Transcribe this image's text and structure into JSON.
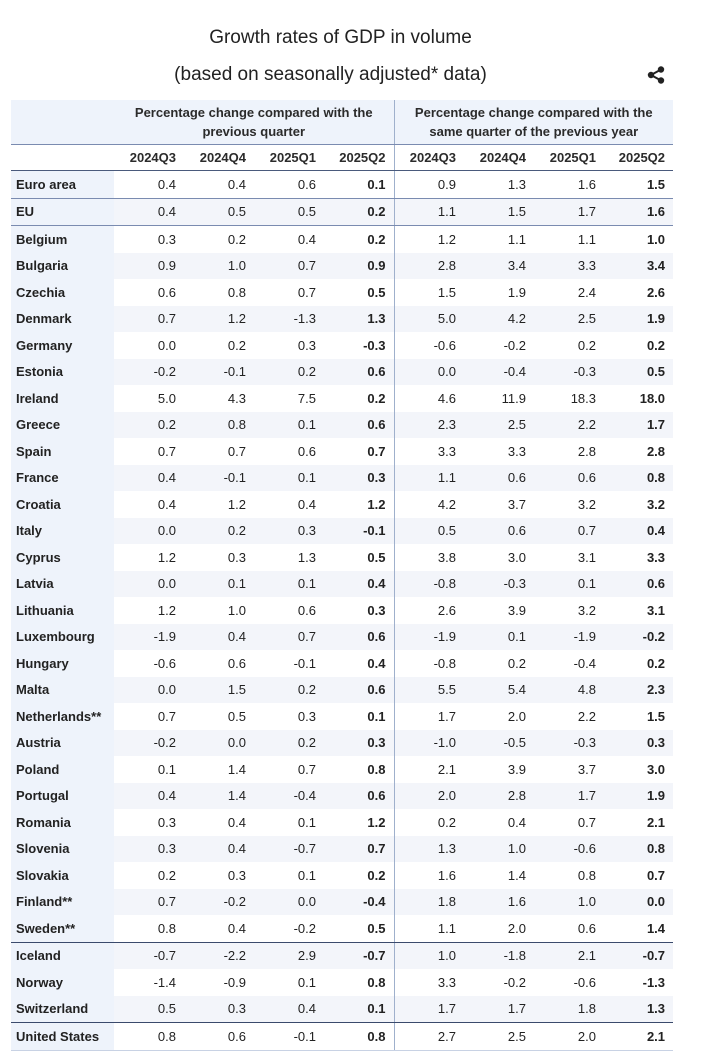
{
  "title": "Growth rates of GDP in volume",
  "subtitle": "(based on seasonally adjusted* data)",
  "icons": {
    "share": "share-icon"
  },
  "colors": {
    "header_bg": "#eef3fb",
    "stripe_bg": "#f3f5fa",
    "rule": "#7a8bb0"
  },
  "table": {
    "group_headers": [
      "Percentage change compared with the previous quarter",
      "Percentage change compared with the same quarter of the previous year"
    ],
    "periods": [
      "2024Q3",
      "2024Q4",
      "2025Q1",
      "2025Q2",
      "2024Q3",
      "2024Q4",
      "2025Q1",
      "2025Q2"
    ],
    "rows": [
      {
        "country": "Euro area",
        "qoq": [
          "0.4",
          "0.4",
          "0.6",
          "0.1"
        ],
        "yoy": [
          "0.9",
          "1.3",
          "1.6",
          "1.5"
        ]
      },
      {
        "country": "EU",
        "qoq": [
          "0.4",
          "0.5",
          "0.5",
          "0.2"
        ],
        "yoy": [
          "1.1",
          "1.5",
          "1.7",
          "1.6"
        ]
      },
      {
        "country": "Belgium",
        "qoq": [
          "0.3",
          "0.2",
          "0.4",
          "0.2"
        ],
        "yoy": [
          "1.2",
          "1.1",
          "1.1",
          "1.0"
        ]
      },
      {
        "country": "Bulgaria",
        "qoq": [
          "0.9",
          "1.0",
          "0.7",
          "0.9"
        ],
        "yoy": [
          "2.8",
          "3.4",
          "3.3",
          "3.4"
        ]
      },
      {
        "country": "Czechia",
        "qoq": [
          "0.6",
          "0.8",
          "0.7",
          "0.5"
        ],
        "yoy": [
          "1.5",
          "1.9",
          "2.4",
          "2.6"
        ]
      },
      {
        "country": "Denmark",
        "qoq": [
          "0.7",
          "1.2",
          "-1.3",
          "1.3"
        ],
        "yoy": [
          "5.0",
          "4.2",
          "2.5",
          "1.9"
        ]
      },
      {
        "country": "Germany",
        "qoq": [
          "0.0",
          "0.2",
          "0.3",
          "-0.3"
        ],
        "yoy": [
          "-0.6",
          "-0.2",
          "0.2",
          "0.2"
        ]
      },
      {
        "country": "Estonia",
        "qoq": [
          "-0.2",
          "-0.1",
          "0.2",
          "0.6"
        ],
        "yoy": [
          "0.0",
          "-0.4",
          "-0.3",
          "0.5"
        ]
      },
      {
        "country": "Ireland",
        "qoq": [
          "5.0",
          "4.3",
          "7.5",
          "0.2"
        ],
        "yoy": [
          "4.6",
          "11.9",
          "18.3",
          "18.0"
        ]
      },
      {
        "country": "Greece",
        "qoq": [
          "0.2",
          "0.8",
          "0.1",
          "0.6"
        ],
        "yoy": [
          "2.3",
          "2.5",
          "2.2",
          "1.7"
        ]
      },
      {
        "country": "Spain",
        "qoq": [
          "0.7",
          "0.7",
          "0.6",
          "0.7"
        ],
        "yoy": [
          "3.3",
          "3.3",
          "2.8",
          "2.8"
        ]
      },
      {
        "country": "France",
        "qoq": [
          "0.4",
          "-0.1",
          "0.1",
          "0.3"
        ],
        "yoy": [
          "1.1",
          "0.6",
          "0.6",
          "0.8"
        ]
      },
      {
        "country": "Croatia",
        "qoq": [
          "0.4",
          "1.2",
          "0.4",
          "1.2"
        ],
        "yoy": [
          "4.2",
          "3.7",
          "3.2",
          "3.2"
        ]
      },
      {
        "country": "Italy",
        "qoq": [
          "0.0",
          "0.2",
          "0.3",
          "-0.1"
        ],
        "yoy": [
          "0.5",
          "0.6",
          "0.7",
          "0.4"
        ]
      },
      {
        "country": "Cyprus",
        "qoq": [
          "1.2",
          "0.3",
          "1.3",
          "0.5"
        ],
        "yoy": [
          "3.8",
          "3.0",
          "3.1",
          "3.3"
        ]
      },
      {
        "country": "Latvia",
        "qoq": [
          "0.0",
          "0.1",
          "0.1",
          "0.4"
        ],
        "yoy": [
          "-0.8",
          "-0.3",
          "0.1",
          "0.6"
        ]
      },
      {
        "country": "Lithuania",
        "qoq": [
          "1.2",
          "1.0",
          "0.6",
          "0.3"
        ],
        "yoy": [
          "2.6",
          "3.9",
          "3.2",
          "3.1"
        ]
      },
      {
        "country": "Luxembourg",
        "qoq": [
          "-1.9",
          "0.4",
          "0.7",
          "0.6"
        ],
        "yoy": [
          "-1.9",
          "0.1",
          "-1.9",
          "-0.2"
        ]
      },
      {
        "country": "Hungary",
        "qoq": [
          "-0.6",
          "0.6",
          "-0.1",
          "0.4"
        ],
        "yoy": [
          "-0.8",
          "0.2",
          "-0.4",
          "0.2"
        ]
      },
      {
        "country": "Malta",
        "qoq": [
          "0.0",
          "1.5",
          "0.2",
          "0.6"
        ],
        "yoy": [
          "5.5",
          "5.4",
          "4.8",
          "2.3"
        ]
      },
      {
        "country": "Netherlands**",
        "qoq": [
          "0.7",
          "0.5",
          "0.3",
          "0.1"
        ],
        "yoy": [
          "1.7",
          "2.0",
          "2.2",
          "1.5"
        ]
      },
      {
        "country": "Austria",
        "qoq": [
          "-0.2",
          "0.0",
          "0.2",
          "0.3"
        ],
        "yoy": [
          "-1.0",
          "-0.5",
          "-0.3",
          "0.3"
        ]
      },
      {
        "country": "Poland",
        "qoq": [
          "0.1",
          "1.4",
          "0.7",
          "0.8"
        ],
        "yoy": [
          "2.1",
          "3.9",
          "3.7",
          "3.0"
        ]
      },
      {
        "country": "Portugal",
        "qoq": [
          "0.4",
          "1.4",
          "-0.4",
          "0.6"
        ],
        "yoy": [
          "2.0",
          "2.8",
          "1.7",
          "1.9"
        ]
      },
      {
        "country": "Romania",
        "qoq": [
          "0.3",
          "0.4",
          "0.1",
          "1.2"
        ],
        "yoy": [
          "0.2",
          "0.4",
          "0.7",
          "2.1"
        ]
      },
      {
        "country": "Slovenia",
        "qoq": [
          "0.3",
          "0.4",
          "-0.7",
          "0.7"
        ],
        "yoy": [
          "1.3",
          "1.0",
          "-0.6",
          "0.8"
        ]
      },
      {
        "country": "Slovakia",
        "qoq": [
          "0.2",
          "0.3",
          "0.1",
          "0.2"
        ],
        "yoy": [
          "1.6",
          "1.4",
          "0.8",
          "0.7"
        ]
      },
      {
        "country": "Finland**",
        "qoq": [
          "0.7",
          "-0.2",
          "0.0",
          "-0.4"
        ],
        "yoy": [
          "1.8",
          "1.6",
          "1.0",
          "0.0"
        ]
      },
      {
        "country": "Sweden**",
        "qoq": [
          "0.8",
          "0.4",
          "-0.2",
          "0.5"
        ],
        "yoy": [
          "1.1",
          "2.0",
          "0.6",
          "1.4"
        ]
      },
      {
        "country": "Iceland",
        "qoq": [
          "-0.7",
          "-2.2",
          "2.9",
          "-0.7"
        ],
        "yoy": [
          "1.0",
          "-1.8",
          "2.1",
          "-0.7"
        ]
      },
      {
        "country": "Norway",
        "qoq": [
          "-1.4",
          "-0.9",
          "0.1",
          "0.8"
        ],
        "yoy": [
          "3.3",
          "-0.2",
          "-0.6",
          "-1.3"
        ]
      },
      {
        "country": "Switzerland",
        "qoq": [
          "0.5",
          "0.3",
          "0.4",
          "0.1"
        ],
        "yoy": [
          "1.7",
          "1.7",
          "1.8",
          "1.3"
        ]
      },
      {
        "country": "United States",
        "qoq": [
          "0.8",
          "0.6",
          "-0.1",
          "0.8"
        ],
        "yoy": [
          "2.7",
          "2.5",
          "2.0",
          "2.1"
        ]
      }
    ]
  }
}
